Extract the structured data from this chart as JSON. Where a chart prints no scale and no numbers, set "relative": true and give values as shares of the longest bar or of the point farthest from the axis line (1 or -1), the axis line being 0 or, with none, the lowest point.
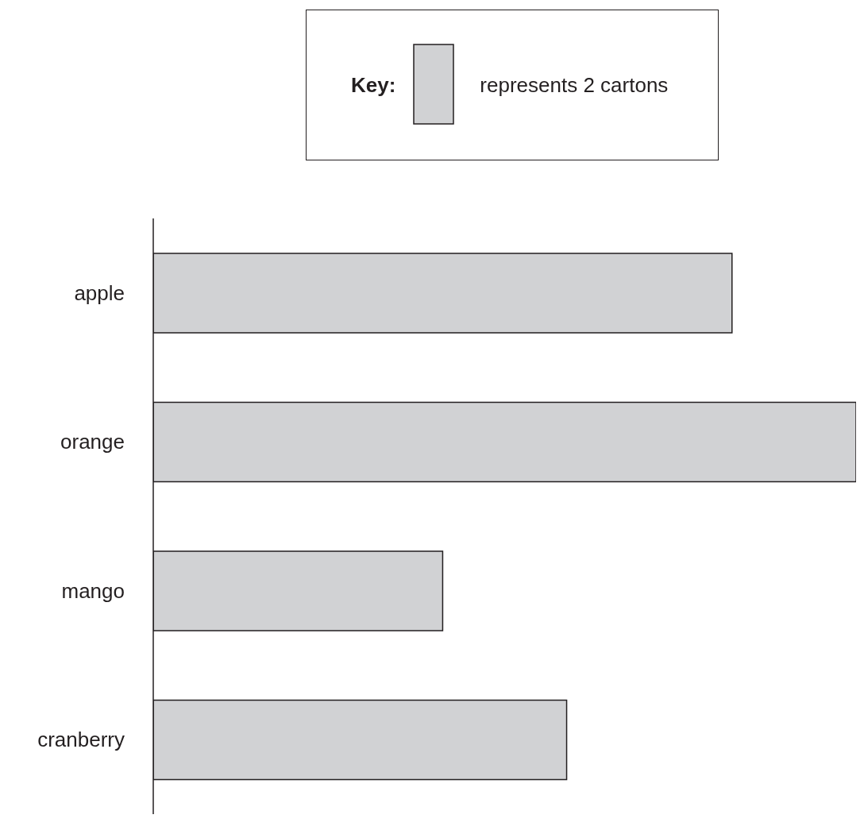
{
  "chart_data": {
    "type": "bar",
    "orientation": "horizontal",
    "relative": true,
    "categories": [
      "apple",
      "orange",
      "mango",
      "cranberry"
    ],
    "values": [
      0.8235,
      1,
      0.4118,
      0.5882
    ],
    "color": "#d1d2d4",
    "annotations": [
      "Key:",
      "represents 2 cartons"
    ]
  }
}
